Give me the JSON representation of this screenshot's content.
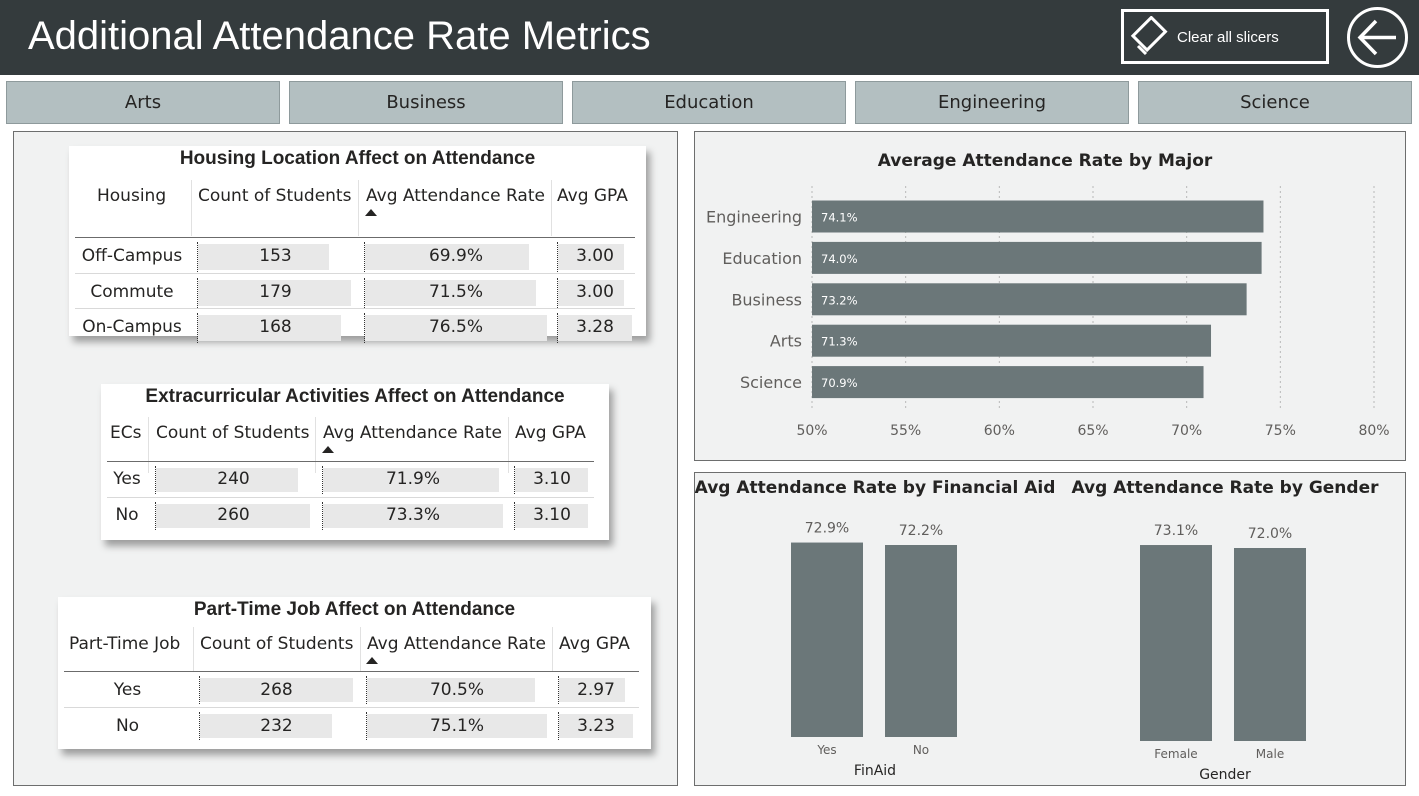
{
  "header": {
    "title": "Additional Attendance Rate Metrics",
    "clear_label": "Clear all slicers"
  },
  "slicers": [
    "Arts",
    "Business",
    "Education",
    "Engineering",
    "Science"
  ],
  "housing": {
    "title": "Housing Location Affect on Attendance",
    "columns": [
      "Housing",
      "Count of Students",
      "Avg Attendance Rate",
      "Avg GPA"
    ],
    "rows": [
      {
        "label": "Off-Campus",
        "count": "153",
        "rate": "69.9%",
        "gpa": "3.00"
      },
      {
        "label": "Commute",
        "count": "179",
        "rate": "71.5%",
        "gpa": "3.00"
      },
      {
        "label": "On-Campus",
        "count": "168",
        "rate": "76.5%",
        "gpa": "3.28"
      }
    ]
  },
  "ecs": {
    "title": "Extracurricular Activities Affect on Attendance",
    "columns": [
      "ECs",
      "Count of Students",
      "Avg Attendance Rate",
      "Avg GPA"
    ],
    "rows": [
      {
        "label": "Yes",
        "count": "240",
        "rate": "71.9%",
        "gpa": "3.10"
      },
      {
        "label": "No",
        "count": "260",
        "rate": "73.3%",
        "gpa": "3.10"
      }
    ]
  },
  "job": {
    "title": "Part-Time Job Affect on Attendance",
    "columns": [
      "Part-Time Job",
      "Count of Students",
      "Avg Attendance Rate",
      "Avg GPA"
    ],
    "rows": [
      {
        "label": "Yes",
        "count": "268",
        "rate": "70.5%",
        "gpa": "2.97"
      },
      {
        "label": "No",
        "count": "232",
        "rate": "75.1%",
        "gpa": "3.23"
      }
    ]
  },
  "colors": {
    "bar": "#6b7779",
    "header": "#343b3d",
    "tab": "#b3bfc1"
  },
  "chart_data": [
    {
      "type": "bar",
      "orientation": "horizontal",
      "title": "Average Attendance Rate by Major",
      "categories": [
        "Engineering",
        "Education",
        "Business",
        "Arts",
        "Science"
      ],
      "values": [
        74.1,
        74.0,
        73.2,
        71.3,
        70.9
      ],
      "labels": [
        "74.1%",
        "74.0%",
        "73.2%",
        "71.3%",
        "70.9%"
      ],
      "xlim": [
        50,
        80
      ],
      "xticks": [
        "50%",
        "55%",
        "60%",
        "65%",
        "70%",
        "75%",
        "80%"
      ],
      "grid": true
    },
    {
      "type": "bar",
      "title": "Avg Attendance Rate by Financial Aid",
      "categories": [
        "Yes",
        "No"
      ],
      "values": [
        72.9,
        72.2
      ],
      "labels": [
        "72.9%",
        "72.2%"
      ],
      "xlabel": "FinAid"
    },
    {
      "type": "bar",
      "title": "Avg Attendance Rate by Gender",
      "categories": [
        "Female",
        "Male"
      ],
      "values": [
        73.1,
        72.0
      ],
      "labels": [
        "73.1%",
        "72.0%"
      ],
      "xlabel": "Gender"
    }
  ]
}
